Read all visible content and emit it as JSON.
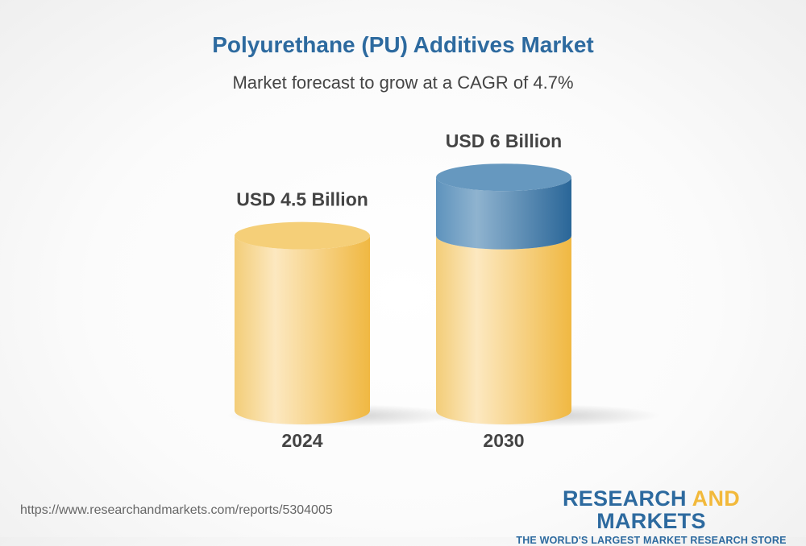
{
  "chart_data": {
    "type": "bar",
    "style": "3d-cylinder",
    "title": "Polyurethane (PU) Additives Market",
    "subtitle": "Market forecast to grow at a CAGR of 4.7%",
    "categories": [
      "2024",
      "2030"
    ],
    "values": [
      4.5,
      6
    ],
    "unit": "USD Billion",
    "data_labels": [
      "USD 4.5 Billion",
      "USD 6 Billion"
    ],
    "colors": {
      "base": "#f2b93b",
      "growth": "#2d6a9f"
    }
  },
  "footer": {
    "url": "https://www.researchandmarkets.com/reports/5304005",
    "logo_part1": "RESEARCH ",
    "logo_part2": "AND",
    "logo_part3": " MARKETS",
    "logo_tagline": "THE WORLD'S LARGEST MARKET RESEARCH STORE"
  }
}
